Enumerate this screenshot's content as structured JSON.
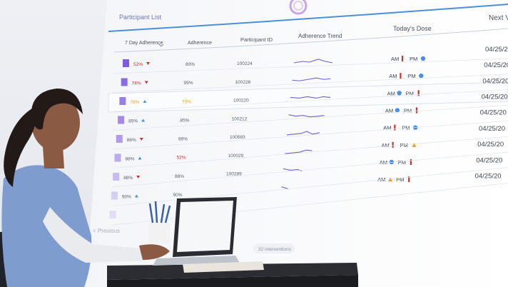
{
  "screen": {
    "title": "Participant List",
    "headers": [
      "7 Day Adherence",
      "Adherence",
      "Participant ID",
      "Adherence Trend",
      "Today's Dose",
      "Next V"
    ],
    "rows": [
      {
        "pct": "52%",
        "adh": "80%",
        "id": "100224",
        "am": "bar",
        "pm": "dot",
        "date": "04/25/2",
        "trend": "up",
        "bar_color": "#7b5ce0",
        "pct_color": "#d0312d",
        "adh_color": "#555e6e"
      },
      {
        "pct": "74%",
        "adh": "99%",
        "id": "100226",
        "am": "bar",
        "pm": "dot",
        "date": "04/25/20",
        "trend": "down-up",
        "bar_color": "#8a6be6",
        "pct_color": "#d0312d",
        "adh_color": "#555e6e"
      },
      {
        "pct": "78%",
        "adh": "73%",
        "id": "100220",
        "am": "dot",
        "pm": "bar",
        "date": "04/25/20",
        "trend": "flat",
        "bar_color": "#9a7ee8",
        "pct_color": "#e8a020",
        "adh_color": "#e8a020",
        "highlight": true
      },
      {
        "pct": "85%",
        "adh": "85%",
        "id": "100212",
        "am": "dot",
        "pm": "bar",
        "date": "04/25/20",
        "trend": "wave",
        "bar_color": "#a48ae6",
        "pct_color": "#555e6e",
        "adh_color": "#555e6e"
      },
      {
        "pct": "86%",
        "adh": "86%",
        "id": "100583",
        "am": "bar",
        "pm": "dot",
        "date": "04/25/20",
        "trend": "bump",
        "bar_color": "#b09cea",
        "pct_color": "#555e6e",
        "adh_color": "#555e6e"
      },
      {
        "pct": "88%",
        "adh": "52%",
        "id": "100029",
        "am": "bar",
        "pm": "triangle",
        "date": "04/25/20",
        "trend": "rise",
        "bar_color": "#bcaaee",
        "pct_color": "#555e6e",
        "adh_color": "#d0312d"
      },
      {
        "pct": "88%",
        "adh": "88%",
        "id": "100289",
        "am": "dot",
        "pm": "bar",
        "date": "04/25/20",
        "trend": "short",
        "bar_color": "#c9bbf0",
        "pct_color": "#555e6e",
        "adh_color": "#555e6e"
      },
      {
        "pct": "90%",
        "adh": "90%",
        "id": "",
        "am": "triangle",
        "pm": "bar",
        "date": "04/25/20",
        "trend": "tiny",
        "bar_color": "#d6cdf3",
        "pct_color": "#555e6e",
        "adh_color": "#555e6e"
      },
      {
        "pct": "",
        "adh": "",
        "id": "",
        "am": "",
        "pm": "",
        "date": "04/25/20",
        "trend": "",
        "bar_color": "#e2dcf6",
        "pct_color": "#555e6e",
        "adh_color": "#555e6e"
      }
    ],
    "am_label": "AM",
    "pm_label": "PM",
    "prev_label": "< Previous",
    "footer_label": "32 interventions",
    "colors": {
      "accent": "#4a90d9",
      "red": "#d0312d",
      "orange": "#e8a020",
      "blue_dot": "#4a8fe0"
    }
  }
}
